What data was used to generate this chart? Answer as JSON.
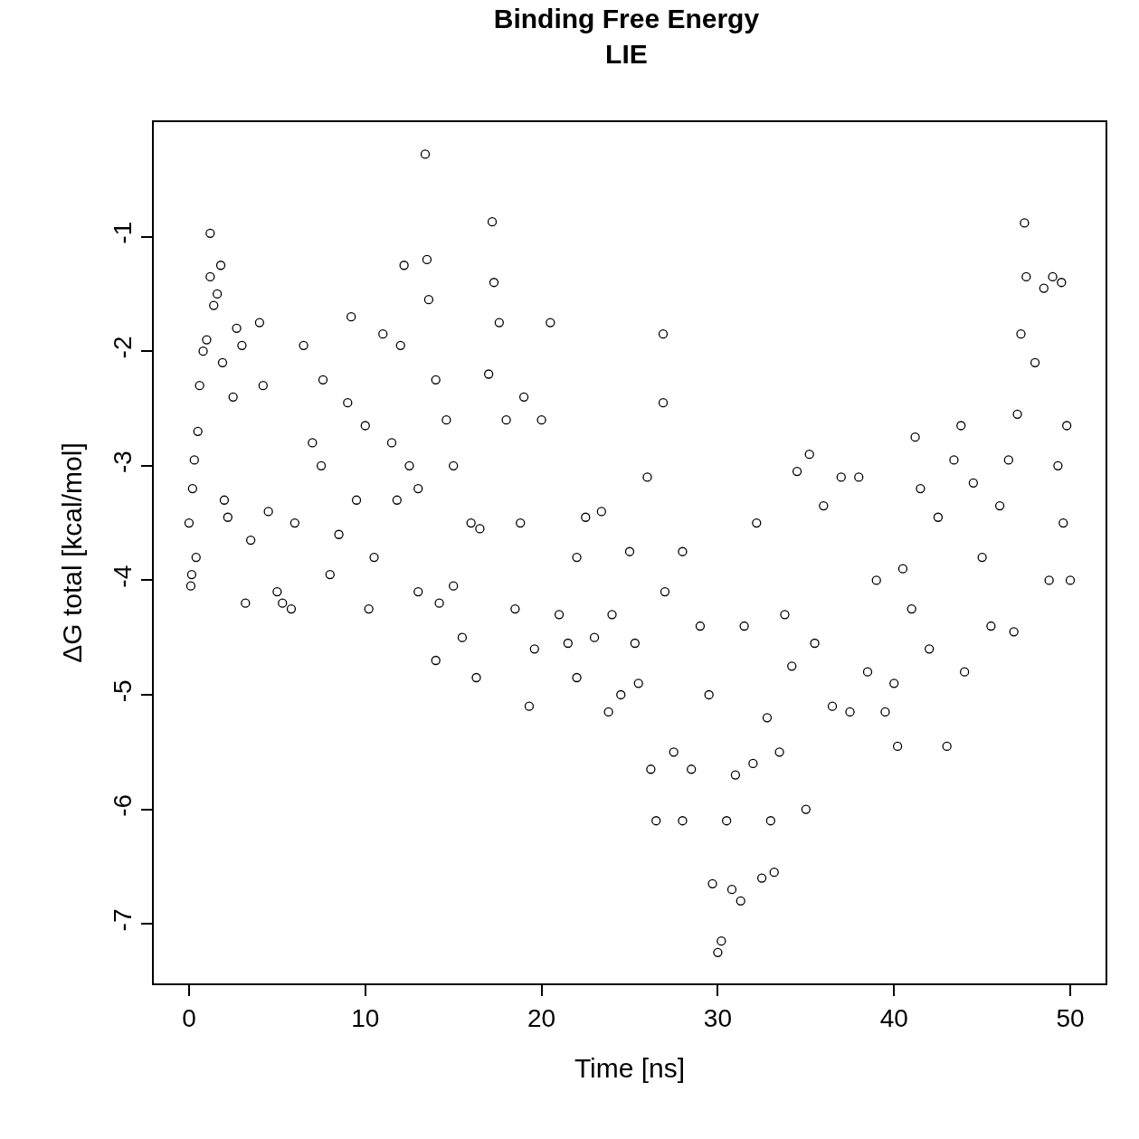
{
  "chart_data": {
    "type": "scatter",
    "title": "Binding Free Energy\nLIE",
    "xlabel": "Time [ns]",
    "ylabel": "ΔG total [kcal/mol]",
    "marker": "circle",
    "xlim": [
      -2,
      52
    ],
    "ylim": [
      -7.52,
      0.0
    ],
    "xticks": [
      0,
      10,
      20,
      30,
      40,
      50
    ],
    "yticks": [
      -7,
      -6,
      -5,
      -4,
      -3,
      -2,
      -1
    ],
    "series": [
      {
        "color": "#000000",
        "x": [
          0.0,
          0.1,
          0.15,
          0.2,
          0.3,
          0.4,
          0.5,
          0.6,
          0.8,
          1.0,
          1.2,
          1.2,
          1.4,
          1.6,
          1.8,
          1.9,
          2.0,
          2.2,
          2.5,
          2.7,
          3.0,
          3.2,
          3.5,
          4.0,
          4.2,
          4.5,
          5.0,
          5.3,
          5.8,
          6.0,
          6.5,
          7.0,
          7.5,
          7.6,
          8.0,
          8.5,
          9.0,
          9.2,
          9.5,
          10.0,
          10.2,
          10.5,
          11.0,
          11.5,
          11.8,
          12.0,
          12.2,
          12.5,
          13.0,
          13.0,
          13.4,
          13.5,
          13.6,
          14.0,
          14.0,
          14.2,
          14.6,
          15.0,
          15.0,
          15.5,
          16.0,
          16.3,
          16.5,
          17.0,
          17.2,
          17.3,
          17.6,
          18.0,
          18.5,
          18.8,
          19.0,
          19.3,
          19.6,
          20.0,
          20.5,
          21.0,
          21.5,
          22.0,
          22.0,
          22.5,
          23.0,
          23.4,
          23.8,
          24.0,
          24.5,
          25.0,
          25.3,
          25.5,
          26.0,
          26.2,
          26.5,
          26.9,
          26.9,
          27.0,
          27.5,
          28.0,
          28.0,
          28.5,
          29.0,
          29.5,
          29.7,
          30.0,
          30.2,
          30.5,
          30.8,
          31.0,
          31.3,
          31.5,
          32.0,
          32.2,
          32.5,
          32.8,
          33.0,
          33.2,
          33.5,
          33.8,
          34.2,
          34.5,
          35.0,
          35.2,
          35.5,
          36.0,
          36.5,
          37.0,
          37.5,
          38.0,
          38.5,
          39.0,
          39.5,
          40.0,
          40.2,
          40.5,
          41.0,
          41.2,
          41.5,
          42.0,
          42.5,
          43.0,
          43.4,
          43.8,
          44.0,
          44.5,
          45.0,
          45.5,
          46.0,
          46.5,
          46.8,
          47.0,
          47.2,
          47.4,
          47.5,
          48.0,
          48.5,
          48.8,
          49.0,
          49.3,
          49.5,
          49.6,
          49.8,
          50.0
        ],
        "values": [
          -3.5,
          -4.05,
          -3.95,
          -3.2,
          -2.95,
          -3.8,
          -2.7,
          -2.3,
          -2.0,
          -1.9,
          -1.35,
          -0.97,
          -1.6,
          -1.5,
          -1.25,
          -2.1,
          -3.3,
          -3.45,
          -2.4,
          -1.8,
          -1.95,
          -4.2,
          -3.65,
          -1.75,
          -2.3,
          -3.4,
          -4.1,
          -4.2,
          -4.25,
          -3.5,
          -1.95,
          -2.8,
          -3.0,
          -2.25,
          -3.95,
          -3.6,
          -2.45,
          -1.7,
          -3.3,
          -2.65,
          -4.25,
          -3.8,
          -1.85,
          -2.8,
          -3.3,
          -1.95,
          -1.25,
          -3.0,
          -3.2,
          -4.1,
          -0.28,
          -1.2,
          -1.55,
          -2.25,
          -4.7,
          -4.2,
          -2.6,
          -3.0,
          -4.05,
          -4.5,
          -3.5,
          -4.85,
          -3.55,
          -2.2,
          -0.87,
          -1.4,
          -1.75,
          -2.6,
          -4.25,
          -3.5,
          -2.4,
          -5.1,
          -4.6,
          -2.6,
          -1.75,
          -4.3,
          -4.55,
          -3.8,
          -4.85,
          -3.45,
          -4.5,
          -3.4,
          -5.15,
          -4.3,
          -5.0,
          -3.75,
          -4.55,
          -4.9,
          -3.1,
          -5.65,
          -6.1,
          -1.85,
          -2.45,
          -4.1,
          -5.5,
          -6.1,
          -3.75,
          -5.65,
          -4.4,
          -5.0,
          -6.65,
          -7.25,
          -7.15,
          -6.1,
          -6.7,
          -5.7,
          -6.8,
          -4.4,
          -5.6,
          -3.5,
          -6.6,
          -5.2,
          -6.1,
          -6.55,
          -5.5,
          -4.3,
          -4.75,
          -3.05,
          -6.0,
          -2.9,
          -4.55,
          -3.35,
          -5.1,
          -3.1,
          -5.15,
          -3.1,
          -4.8,
          -4.0,
          -5.15,
          -4.9,
          -5.45,
          -3.9,
          -4.25,
          -2.75,
          -3.2,
          -4.6,
          -3.45,
          -5.45,
          -2.95,
          -2.65,
          -4.8,
          -3.15,
          -3.8,
          -4.4,
          -3.35,
          -2.95,
          -4.45,
          -2.55,
          -1.85,
          -0.88,
          -1.35,
          -2.1,
          -1.45,
          -4.0,
          -1.35,
          -3.0,
          -1.4,
          -3.5,
          -2.65,
          -4.0
        ]
      }
    ]
  }
}
